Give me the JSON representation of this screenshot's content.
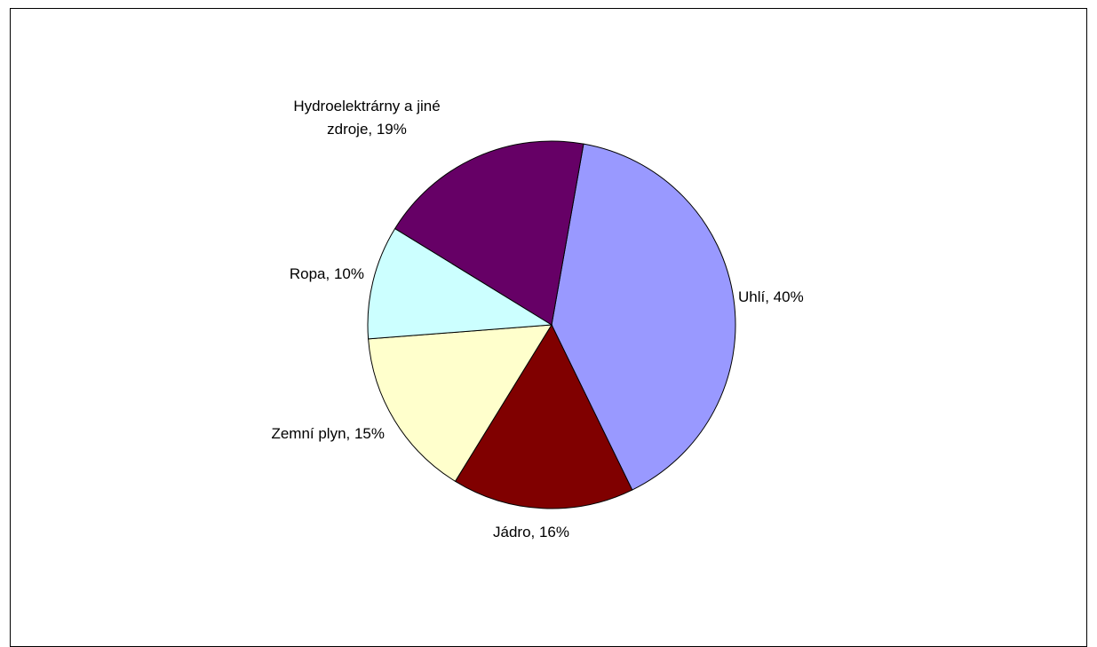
{
  "chart_data": {
    "type": "pie",
    "title": "",
    "slices": [
      {
        "label": "Uhlí",
        "value": 40,
        "color": "#9999FF",
        "label_text": "Uhlí, 40%"
      },
      {
        "label": "Jádro",
        "value": 16,
        "color": "#800000",
        "label_text": "Jádro, 16%"
      },
      {
        "label": "Zemní plyn",
        "value": 15,
        "color": "#FFFFCC",
        "label_text": "Zemní plyn, 15%"
      },
      {
        "label": "Ropa",
        "value": 10,
        "color": "#CCFFFF",
        "label_text": "Ropa, 10%"
      },
      {
        "label": "Hydroelektrárny a jiné zdroje",
        "value": 19,
        "color": "#660066",
        "label_text": [
          "Hydroelektrárny a jiné",
          "zdroje, 19%"
        ]
      }
    ],
    "start_angle_deg": 10,
    "direction": "clockwise",
    "legend": "none"
  }
}
